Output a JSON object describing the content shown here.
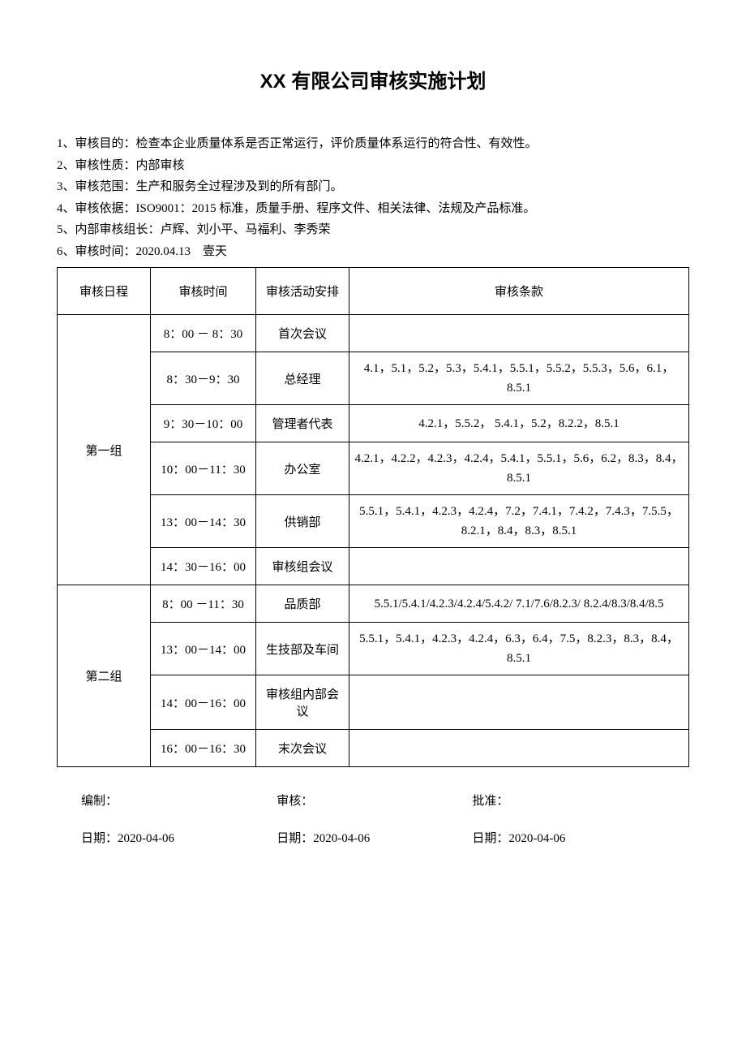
{
  "title": "XX 有限公司审核实施计划",
  "info_items": [
    "1、审核目的：检查本企业质量体系是否正常运行，评价质量体系运行的符合性、有效性。",
    "2、审核性质：内部审核",
    "3、审核范围：生产和服务全过程涉及到的所有部门。",
    "4、审核依据：ISO9001：2015 标准，质量手册、程序文件、相关法律、法规及产品标准。",
    "5、内部审核组长：卢辉、刘小平、马福利、李秀荣",
    "6、审核时间：2020.04.13　壹天"
  ],
  "table": {
    "headers": {
      "schedule": "审核日程",
      "time": "审核时间",
      "activity": "审核活动安排",
      "clause": "审核条款"
    },
    "groups": [
      {
        "name": "第一组",
        "rows": [
          {
            "time": "8：00 － 8：30",
            "activity": "首次会议",
            "clause": ""
          },
          {
            "time": "8：30－9：30",
            "activity": "总经理",
            "clause": "4.1，5.1，5.2，5.3，5.4.1，5.5.1，5.5.2，5.5.3，5.6，6.1，8.5.1"
          },
          {
            "time": "9：30－10：00",
            "activity": "管理者代表",
            "clause": "4.2.1，5.5.2， 5.4.1，5.2，8.2.2，8.5.1"
          },
          {
            "time": "10：00－11：30",
            "activity": "办公室",
            "clause": "4.2.1，4.2.2，4.2.3，4.2.4，5.4.1，5.5.1，5.6，6.2，8.3，8.4，8.5.1"
          },
          {
            "time": "13：00－14：30",
            "activity": "供销部",
            "clause": "5.5.1，5.4.1，4.2.3，4.2.4，7.2，7.4.1，7.4.2，7.4.3，7.5.5，8.2.1，8.4，8.3，8.5.1"
          },
          {
            "time": "14：30－16：00",
            "activity": "审核组会议",
            "clause": ""
          }
        ]
      },
      {
        "name": "第二组",
        "rows": [
          {
            "time": "8：00 －11：30",
            "activity": "品质部",
            "clause": "5.5.1/5.4.1/4.2.3/4.2.4/5.4.2/ 7.1/7.6/8.2.3/ 8.2.4/8.3/8.4/8.5"
          },
          {
            "time": "13：00－14：00",
            "activity": "生技部及车间",
            "clause": "5.5.1，5.4.1，4.2.3，4.2.4，6.3，6.4，7.5，8.2.3，8.3，8.4，8.5.1"
          },
          {
            "time": "14：00－16：00",
            "activity": "审核组内部会议",
            "clause": ""
          },
          {
            "time": "16：00－16：30",
            "activity": "末次会议",
            "clause": ""
          }
        ]
      }
    ]
  },
  "signatures": {
    "compile": "编制：",
    "review": "审核：",
    "approve": "批准："
  },
  "dates": {
    "compile": "日期：2020-04-06",
    "review": "日期：2020-04-06",
    "approve": "日期：2020-04-06"
  }
}
